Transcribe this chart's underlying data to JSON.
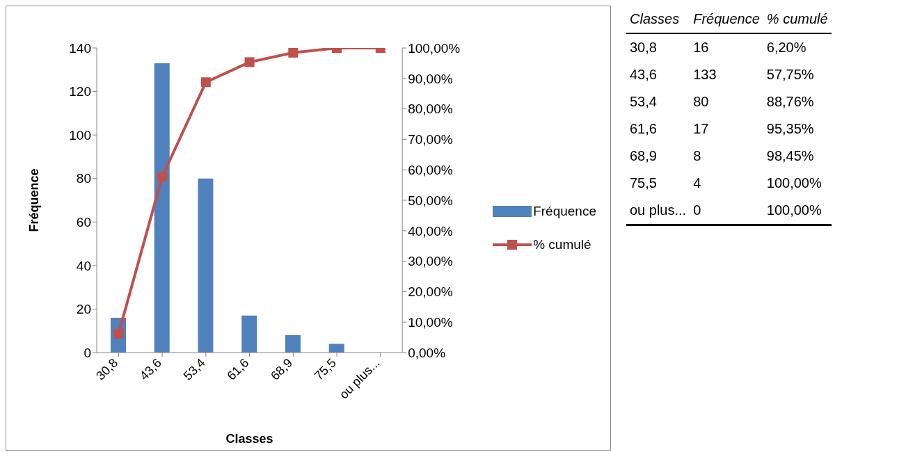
{
  "chart_data": [
    {
      "type": "bar",
      "xlabel": "Classes",
      "ylabel": "Fréquence",
      "categories": [
        "30,8",
        "43,6",
        "53,4",
        "61,6",
        "68,9",
        "75,5",
        "ou plus..."
      ],
      "series": [
        {
          "name": "Fréquence",
          "type": "bar",
          "color": "#4f81bd",
          "values": [
            16,
            133,
            80,
            17,
            8,
            4,
            0
          ]
        },
        {
          "name": "% cumulé",
          "type": "line",
          "axis": "y2",
          "color": "#c0504d",
          "marker": "square",
          "values": [
            6.2,
            57.75,
            88.76,
            95.35,
            98.45,
            100,
            100
          ]
        }
      ],
      "ylim": [
        0,
        140
      ],
      "yticks": [
        0,
        20,
        40,
        60,
        80,
        100,
        120,
        140
      ],
      "y2lim": [
        0,
        100
      ],
      "y2ticks": [
        {
          "value": 0,
          "label": "0,00%"
        },
        {
          "value": 10,
          "label": "10,00%"
        },
        {
          "value": 20,
          "label": "20,00%"
        },
        {
          "value": 30,
          "label": "30,00%"
        },
        {
          "value": 40,
          "label": "40,00%"
        },
        {
          "value": 50,
          "label": "50,00%"
        },
        {
          "value": 60,
          "label": "60,00%"
        },
        {
          "value": 70,
          "label": "70,00%"
        },
        {
          "value": 80,
          "label": "80,00%"
        },
        {
          "value": 90,
          "label": "90,00%"
        },
        {
          "value": 100,
          "label": "100,00%"
        }
      ],
      "legend": "right"
    },
    {
      "type": "other",
      "annotations": [
        "Classes",
        "Fréquence",
        "% cumulé",
        "30,8",
        "16",
        "6,20%",
        "43,6",
        "133",
        "57,75%",
        "53,4",
        "80",
        "88,76%",
        "61,6",
        "17",
        "95,35%",
        "68,9",
        "8",
        "98,45%",
        "75,5",
        "4",
        "100,00%",
        "ou plus...",
        "0",
        "100,00%"
      ]
    }
  ]
}
